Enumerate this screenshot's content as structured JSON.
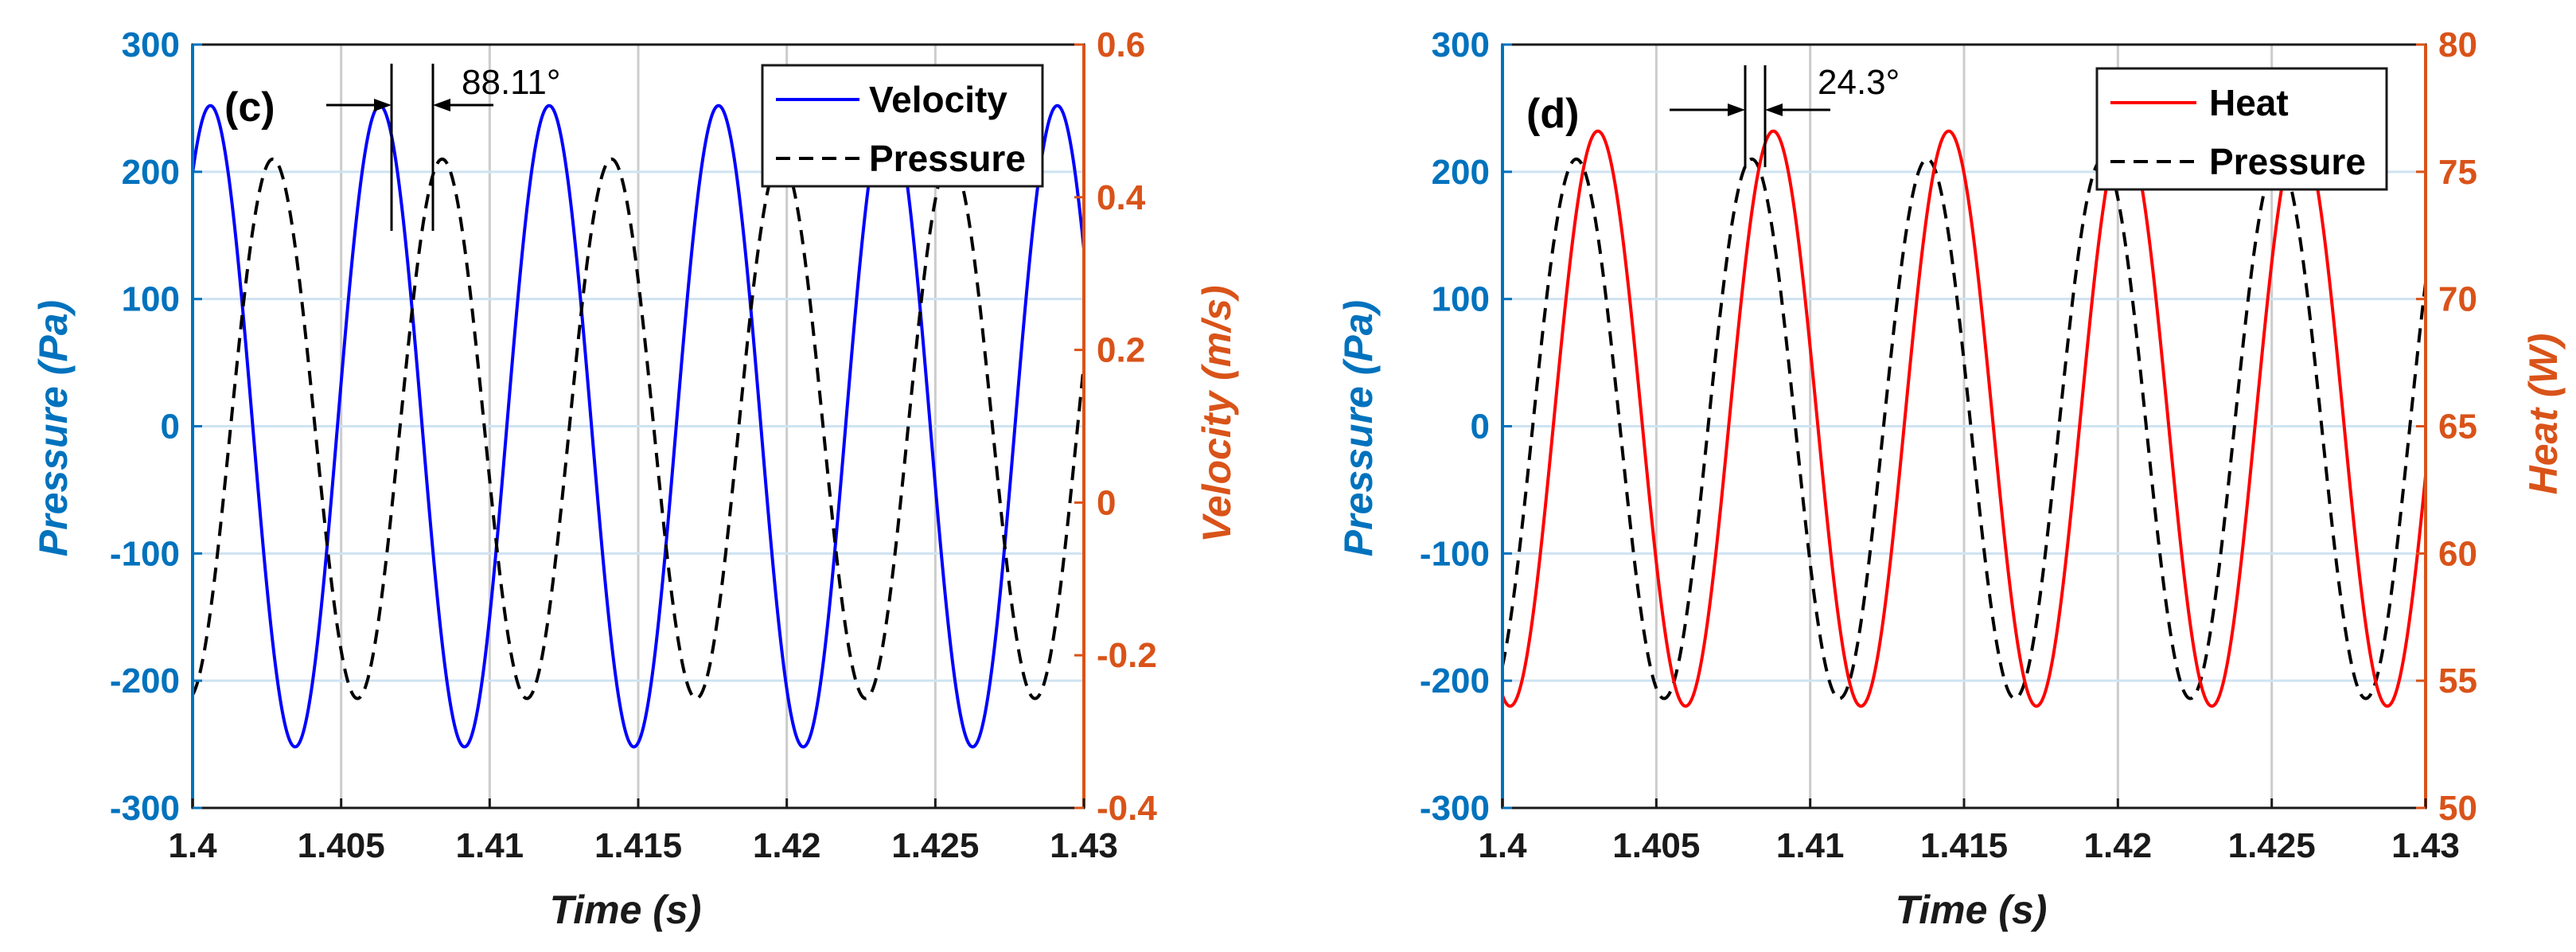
{
  "colors": {
    "pressure_axis": "#0072BD",
    "right_axis": "#D95319",
    "velocity": "#0000FF",
    "heat": "#FF0000",
    "pressure": "#000000",
    "grid_x": "#cccccc",
    "grid_y": "#cfe3f2"
  },
  "chart_data": [
    {
      "type": "line",
      "panel_label": "(c)",
      "xlabel": "Time (s)",
      "ylabel_left": "Pressure (Pa)",
      "ylabel_right": "Velocity (m/s)",
      "xlim": [
        1.4,
        1.43
      ],
      "ylim_left": [
        -300,
        300
      ],
      "ylim_right": [
        -0.4,
        0.6
      ],
      "x_ticks": [
        "1.4",
        "1.405",
        "1.41",
        "1.415",
        "1.42",
        "1.425",
        "1.43"
      ],
      "y_ticks_left": [
        "300",
        "200",
        "100",
        "0",
        "-100",
        "-200",
        "-300"
      ],
      "y_ticks_right": [
        "0.6",
        "0.4",
        "0.2",
        "0",
        "-0.2",
        "-0.4"
      ],
      "legend": [
        "Velocity",
        "Pressure"
      ],
      "annotation": "88.11°",
      "series": [
        {
          "name": "Velocity",
          "axis": "right",
          "style": "solid",
          "frequency_hz": 175.4,
          "mean": 0.1,
          "amplitude": 0.42,
          "peak_time": 1.4006
        },
        {
          "name": "Pressure",
          "axis": "left",
          "style": "dashed",
          "frequency_hz": 175.4,
          "mean": -2,
          "amplitude": 212,
          "peak_time": 1.4027
        }
      ]
    },
    {
      "type": "line",
      "panel_label": "(d)",
      "xlabel": "Time (s)",
      "ylabel_left": "Pressure (Pa)",
      "ylabel_right": "Heat (W)",
      "xlim": [
        1.4,
        1.43
      ],
      "ylim_left": [
        -300,
        300
      ],
      "ylim_right": [
        50,
        80
      ],
      "x_ticks": [
        "1.4",
        "1.405",
        "1.41",
        "1.415",
        "1.42",
        "1.425",
        "1.43"
      ],
      "y_ticks_left": [
        "300",
        "200",
        "100",
        "0",
        "-100",
        "-200",
        "-300"
      ],
      "y_ticks_right": [
        "80",
        "75",
        "70",
        "65",
        "60",
        "55",
        "50"
      ],
      "legend": [
        "Heat",
        "Pressure"
      ],
      "annotation": "24.3°",
      "series": [
        {
          "name": "Heat",
          "axis": "right",
          "style": "solid",
          "frequency_hz": 175.4,
          "mean": 65.3,
          "amplitude": 11.3,
          "peak_time": 1.4031
        },
        {
          "name": "Pressure",
          "axis": "left",
          "style": "dashed",
          "frequency_hz": 175.4,
          "mean": -2,
          "amplitude": 212,
          "peak_time": 1.4024
        }
      ]
    }
  ]
}
